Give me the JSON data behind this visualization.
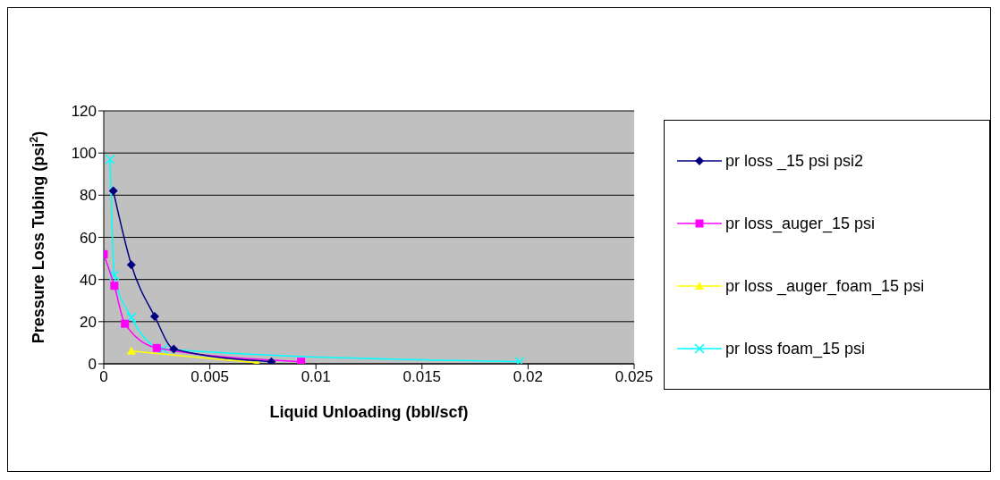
{
  "chart_data": {
    "type": "line",
    "xlabel": "Liquid Unloading (bbl/scf)",
    "ylabel": "Pressure Loss  Tubing (psi$^{2}$)",
    "xlim": [
      0,
      0.025
    ],
    "xticks": [
      0,
      0.005,
      0.01,
      0.015,
      0.02,
      0.025
    ],
    "ylim": [
      0,
      120
    ],
    "yticks": [
      0,
      20,
      40,
      60,
      80,
      100,
      120
    ],
    "grid": "y",
    "legend": "right",
    "series": [
      {
        "name": "pr loss _15 psi psi2",
        "color": "#000080",
        "marker": "diamond",
        "x": [
          0.00045,
          0.0013,
          0.0024,
          0.0033,
          0.0079
        ],
        "values": [
          82,
          47,
          22.5,
          7,
          1
        ]
      },
      {
        "name": "pr loss_auger_15 psi",
        "color": "#ff00ff",
        "marker": "square",
        "x": [
          0,
          0.0005,
          0.001,
          0.0025,
          0.0093
        ],
        "values": [
          52,
          37,
          19,
          7.5,
          1
        ]
      },
      {
        "name": "pr loss _auger_foam_15 psi",
        "color": "#ffff00",
        "marker": "triangle",
        "x": [
          0.0013,
          0.0072
        ],
        "values": [
          6,
          0.5
        ]
      },
      {
        "name": "pr loss foam_15 psi",
        "color": "#00ffff",
        "marker": "cross",
        "x": [
          0.0003,
          0.0005,
          0.0013,
          0.0028,
          0.0196
        ],
        "values": [
          97,
          42,
          22,
          7,
          1
        ]
      }
    ]
  }
}
